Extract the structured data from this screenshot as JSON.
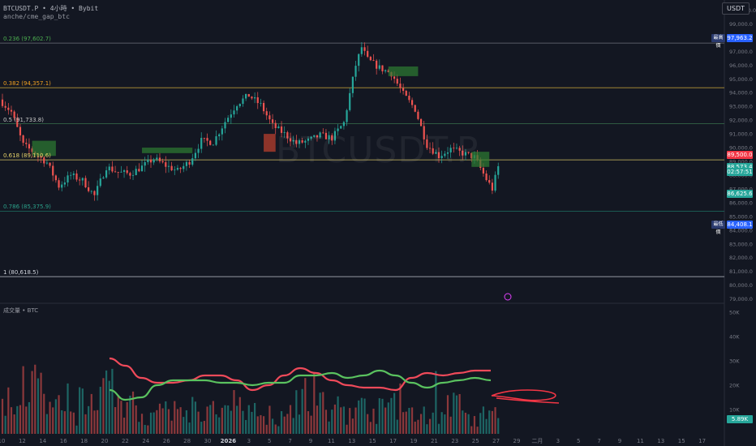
{
  "header": {
    "symbol_line": "BTCUSDT.P • 4小時 • Bybit",
    "indicator_line": "anche/cme_gap_btc",
    "currency": "USDT",
    "watermark": "BTCUSDT.P"
  },
  "fib_levels": [
    {
      "label": "0.236 (97,602.7)",
      "price": 97602.7,
      "color": "#4caf50",
      "line_color": "#787b86"
    },
    {
      "label": "0.382 (94,357.1)",
      "price": 94357.1,
      "color": "#f0a020",
      "line_color": "#c8a33a"
    },
    {
      "label": "0.5 (91,733.8)",
      "price": 91733.8,
      "color": "#c8c8c8",
      "line_color": "#3c7a52"
    },
    {
      "label": "0.618 (89,110.6)",
      "price": 89110.6,
      "color": "#e8d46a",
      "line_color": "#e8d46a"
    },
    {
      "label": "0.786 (85,375.9)",
      "price": 85375.9,
      "color": "#2ba18a",
      "line_color": "#1f7a6a"
    },
    {
      "label": "1 (80,618.5)",
      "price": 80618.5,
      "color": "#d1d4dc",
      "line_color": "#d1d4dc"
    }
  ],
  "price_tags": [
    {
      "price": 97963.2,
      "text": "97,963.2",
      "pill": "最高價",
      "bg": "#2962ff"
    },
    {
      "price": 89500.0,
      "text": "89,500.0",
      "bg": "#f23645"
    },
    {
      "price": 88573.4,
      "text": "88,573.4",
      "bg": "#26a69a"
    },
    {
      "price": 88250.0,
      "text": "02:57:51",
      "bg": "#26a69a"
    },
    {
      "price": 86625.6,
      "text": "86,625.6",
      "bg": "#26a69a"
    },
    {
      "price": 84408.1,
      "text": "84,408.1",
      "pill": "最低價",
      "bg": "#2962ff"
    }
  ],
  "volume_header": "成交量 • BTC",
  "volume_last_tag": "5.89K",
  "chart_data": {
    "type": "candlestick",
    "price_axis": {
      "ticks": [
        "100,000.0",
        "99,000.0",
        "98,000.0",
        "97,000.0",
        "96,000.0",
        "95,000.0",
        "94,000.0",
        "93,000.0",
        "92,000.0",
        "91,000.0",
        "90,000.0",
        "89,000.0",
        "88,000.0",
        "87,000.0",
        "86,000.0",
        "85,000.0",
        "84,000.0",
        "83,000.0",
        "82,000.0",
        "81,000.0",
        "80,000.0",
        "79,000.0"
      ],
      "tick_values": [
        100000,
        99000,
        98000,
        97000,
        96000,
        95000,
        94000,
        93000,
        92000,
        91000,
        90000,
        89000,
        88000,
        87000,
        86000,
        85000,
        84000,
        83000,
        82000,
        81000,
        80000,
        79000
      ],
      "range": [
        78800,
        100500
      ]
    },
    "volume_axis": {
      "ticks": [
        "50K",
        "40K",
        "30K",
        "20K",
        "10K"
      ],
      "tick_values": [
        50000,
        40000,
        30000,
        20000,
        10000
      ],
      "range": [
        0,
        51000
      ]
    },
    "time_axis": {
      "labels": [
        "10",
        "12",
        "14",
        "16",
        "18",
        "20",
        "22",
        "24",
        "26",
        "28",
        "30",
        "2026",
        "3",
        "5",
        "7",
        "9",
        "11",
        "13",
        "15",
        "17",
        "19",
        "21",
        "23",
        "25",
        "27",
        "29",
        "二月",
        "3",
        "5",
        "7",
        "9",
        "11",
        "13",
        "15",
        "17"
      ]
    },
    "price_anchors": [
      [
        0,
        93500
      ],
      [
        2,
        92600
      ],
      [
        4,
        90200
      ],
      [
        6,
        89600
      ],
      [
        8,
        88900
      ],
      [
        10,
        87200
      ],
      [
        12,
        88000
      ],
      [
        14,
        87600
      ],
      [
        16,
        86500
      ],
      [
        18,
        88600
      ],
      [
        20,
        88200
      ],
      [
        22,
        88100
      ],
      [
        24,
        88600
      ],
      [
        26,
        89200
      ],
      [
        28,
        88700
      ],
      [
        30,
        88300
      ],
      [
        32,
        89000
      ],
      [
        34,
        90500
      ],
      [
        36,
        90400
      ],
      [
        38,
        91900
      ],
      [
        40,
        93200
      ],
      [
        42,
        93800
      ],
      [
        44,
        93100
      ],
      [
        46,
        91600
      ],
      [
        48,
        91000
      ],
      [
        50,
        90300
      ],
      [
        52,
        90500
      ],
      [
        54,
        90900
      ],
      [
        56,
        90700
      ],
      [
        58,
        91800
      ],
      [
        60,
        96000
      ],
      [
        61,
        97300
      ],
      [
        62,
        96400
      ],
      [
        64,
        95800
      ],
      [
        66,
        95400
      ],
      [
        68,
        93900
      ],
      [
        70,
        92800
      ],
      [
        72,
        90200
      ],
      [
        74,
        89400
      ],
      [
        76,
        89900
      ],
      [
        78,
        89600
      ],
      [
        80,
        89300
      ],
      [
        82,
        87700
      ],
      [
        83,
        87000
      ],
      [
        84,
        88600
      ],
      [
        85,
        88500
      ]
    ],
    "volume_profile_k": [
      14,
      21,
      11,
      8,
      13,
      24,
      12,
      7,
      9,
      11,
      10,
      8,
      13,
      9,
      7,
      16,
      12,
      9,
      11,
      10,
      14,
      8,
      9,
      12,
      6,
      8
    ],
    "ma_series": [
      {
        "name": "red",
        "color": "#f04a5a",
        "values_k": [
          31,
          28,
          23,
          21,
          21,
          22,
          24,
          24,
          22,
          18,
          20,
          24,
          27,
          25,
          22,
          20,
          19,
          19,
          18,
          23,
          25,
          24,
          25,
          26,
          26
        ]
      },
      {
        "name": "green",
        "color": "#5ac25f",
        "values_k": [
          18,
          14,
          15,
          20,
          22,
          22,
          22,
          21,
          21,
          20,
          21,
          21,
          24,
          24,
          25,
          23,
          24,
          26,
          24,
          21,
          19,
          21,
          22,
          23,
          22
        ]
      }
    ]
  }
}
